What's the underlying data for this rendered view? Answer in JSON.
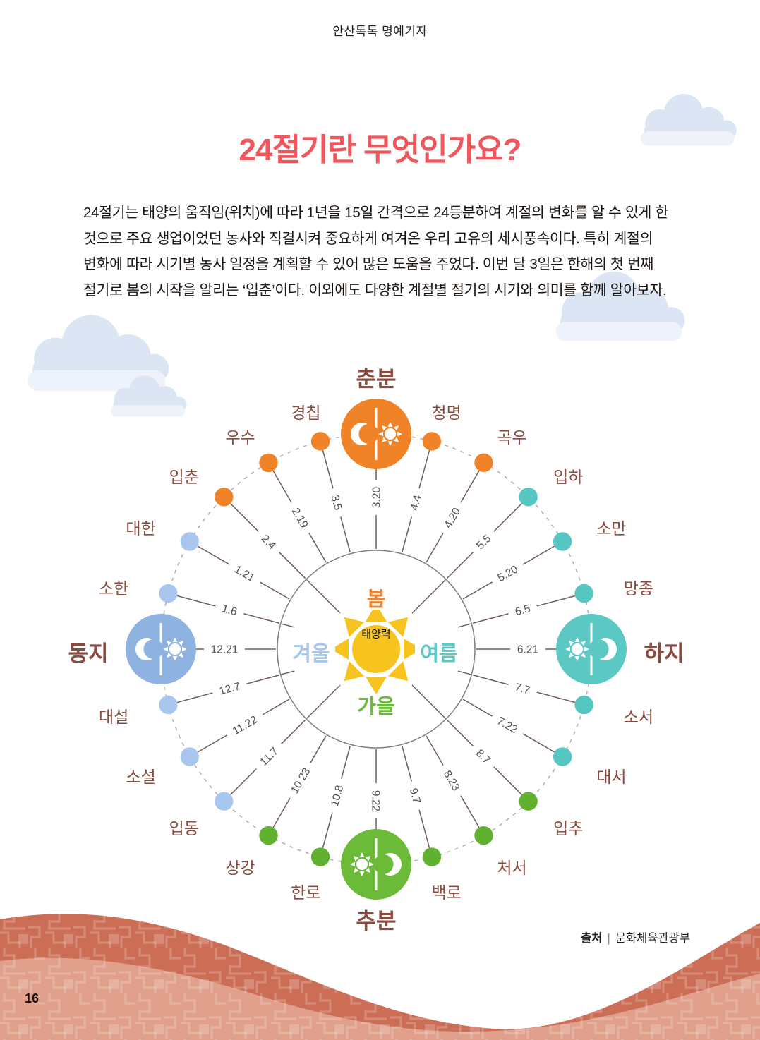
{
  "page": {
    "byline": "안산톡톡 명예기자",
    "title": "24절기란 무엇인가요?",
    "intro": "24절기는 태양의 움직임(위치)에 따라 1년을 15일 간격으로 24등분하여 계절의 변화를 알 수 있게 한 것으로 주요 생업이었던 농사와 직결시켜 중요하게 여겨온 우리 고유의 세시풍속이다. 특히 계절의 변화에 따라 시기별 농사 일정을 계획할 수 있어 많은 도움을 주었다. 이번 달 3일은 한해의 첫 번째 절기로 봄의 시작을 알리는 ‘입춘’이다. 이외에도 다양한 계절별 절기의 시기와 의미를 함께 알아보자.",
    "page_number": "16"
  },
  "source": {
    "label": "출처",
    "divider": "|",
    "value": "문화체육관광부"
  },
  "colors": {
    "title": "#F0565C",
    "term_label": "#8A4A3E",
    "date_label": "#505050",
    "spoke": "#6F5D56",
    "dashed_ring": "#B5B0AD",
    "sun": "#F6C31F",
    "wave_back": "#CB6E55",
    "wave_front": "#E0A08C",
    "cloud": "#DCE5F4",
    "cloud_light": "#EEF2FA"
  },
  "diagram": {
    "center_label": "태양력",
    "seasons": [
      {
        "name": "봄",
        "color": "#EF8432",
        "position": "top"
      },
      {
        "name": "여름",
        "color": "#5CC8C3",
        "position": "right"
      },
      {
        "name": "가을",
        "color": "#6CBB38",
        "position": "bottom"
      },
      {
        "name": "겨울",
        "color": "#A9C6EE",
        "position": "left"
      }
    ],
    "season_colors": {
      "spring": {
        "dot": "#F08228",
        "major": "#F08228"
      },
      "summer": {
        "dot": "#55C6C2",
        "major": "#5CC8C4"
      },
      "autumn": {
        "dot": "#5FB12F",
        "major": "#6CBB38"
      },
      "winter": {
        "dot": "#A9C7EE",
        "major": "#8FB3E1"
      }
    },
    "terms": [
      {
        "name": "춘분",
        "date": "3.20",
        "angle": -90,
        "season": "spring",
        "major": true,
        "icon": "moon-sun"
      },
      {
        "name": "청명",
        "date": "4.4",
        "angle": -75,
        "season": "spring"
      },
      {
        "name": "곡우",
        "date": "4.20",
        "angle": -60,
        "season": "spring"
      },
      {
        "name": "입하",
        "date": "5.5",
        "angle": -45,
        "season": "summer"
      },
      {
        "name": "소만",
        "date": "5.20",
        "angle": -30,
        "season": "summer"
      },
      {
        "name": "망종",
        "date": "6.5",
        "angle": -15,
        "season": "summer"
      },
      {
        "name": "하지",
        "date": "6.21",
        "angle": 0,
        "season": "summer",
        "major": true,
        "icon": "sun-moon"
      },
      {
        "name": "소서",
        "date": "7.7",
        "angle": 15,
        "season": "summer"
      },
      {
        "name": "대서",
        "date": "7.22",
        "angle": 30,
        "season": "summer"
      },
      {
        "name": "입추",
        "date": "8.7",
        "angle": 45,
        "season": "autumn"
      },
      {
        "name": "처서",
        "date": "8.23",
        "angle": 60,
        "season": "autumn"
      },
      {
        "name": "백로",
        "date": "9.7",
        "angle": 75,
        "season": "autumn"
      },
      {
        "name": "추분",
        "date": "9.22",
        "angle": 90,
        "season": "autumn",
        "major": true,
        "icon": "sun-moon"
      },
      {
        "name": "한로",
        "date": "10.8",
        "angle": 105,
        "season": "autumn"
      },
      {
        "name": "상강",
        "date": "10.23",
        "angle": 120,
        "season": "autumn"
      },
      {
        "name": "입동",
        "date": "11.7",
        "angle": 135,
        "season": "winter"
      },
      {
        "name": "소설",
        "date": "11.22",
        "angle": 150,
        "season": "winter"
      },
      {
        "name": "대설",
        "date": "12.7",
        "angle": 165,
        "season": "winter"
      },
      {
        "name": "동지",
        "date": "12.21",
        "angle": 180,
        "season": "winter",
        "major": true,
        "icon": "moon-sun"
      },
      {
        "name": "소한",
        "date": "1.6",
        "angle": -165,
        "season": "winter"
      },
      {
        "name": "대한",
        "date": "1.21",
        "angle": -150,
        "season": "winter"
      },
      {
        "name": "입춘",
        "date": "2.4",
        "angle": -135,
        "season": "spring"
      },
      {
        "name": "우수",
        "date": "2.19",
        "angle": -120,
        "season": "spring"
      },
      {
        "name": "경칩",
        "date": "3.5",
        "angle": -105,
        "season": "spring"
      }
    ]
  }
}
